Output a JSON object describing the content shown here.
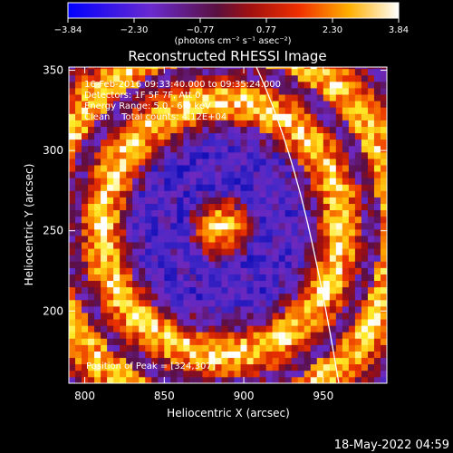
{
  "colorbar": {
    "ticks": [
      "−3.84",
      "−2.30",
      "−0.77",
      "0.77",
      "2.30",
      "3.84"
    ],
    "units": "(photons cm⁻² s⁻¹ asec⁻²)"
  },
  "chart_data": {
    "type": "heatmap",
    "title": "Reconstructed RHESSI Image",
    "xlabel": "Heliocentric X (arcsec)",
    "ylabel": "Heliocentric Y (arcsec)",
    "xlim": [
      790,
      990
    ],
    "ylim": [
      155,
      352
    ],
    "xticks": [
      "800",
      "850",
      "900",
      "950"
    ],
    "yticks": [
      "200",
      "250",
      "300",
      "350"
    ],
    "value_range": [
      -3.84,
      3.84
    ],
    "colormap": "rhessi-diverging (blue → purple → red → orange → yellow → white)",
    "grid": false,
    "features": {
      "peak_xy": [
        886,
        252
      ],
      "ring_radius": 75,
      "outer_band_radius": 110
    },
    "annotations": [
      "16-Feb-2016 09:33:40.000 to 09:35:24.000",
      "Detectors: 1F 5F 7F, Att 0",
      "Energy Range: 5.0 - 6.0 keV",
      "Clean    Total counts: 4.12E+04",
      "Position of Peak = [324,307]"
    ]
  },
  "footer_timestamp": "18-May-2022 04:59"
}
